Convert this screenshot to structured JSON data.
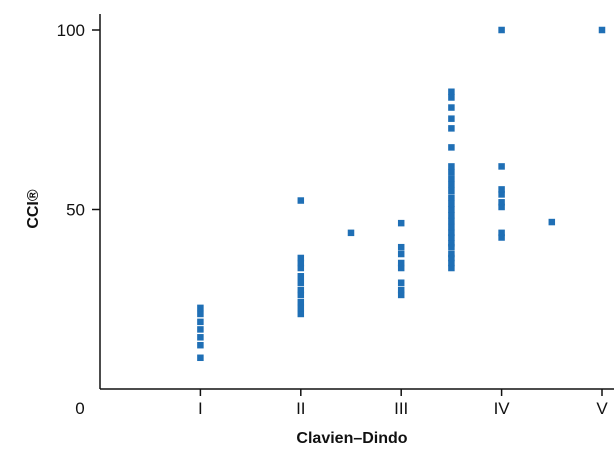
{
  "chart_data": {
    "type": "scatter",
    "title": "",
    "xlabel": "Clavien–Dindo",
    "ylabel": "CCI®",
    "x_categories": [
      "I",
      "II",
      "III",
      "IV",
      "V"
    ],
    "x_origin_label": "0",
    "xlim": [
      0,
      5
    ],
    "ylim": [
      0,
      100
    ],
    "y_ticks": [
      50,
      100
    ],
    "grid": false,
    "legend": "none",
    "marker_color": "#1f6fb5",
    "series": [
      {
        "points": [
          {
            "x": 1,
            "y": 8.7
          },
          {
            "x": 1,
            "y": 12.2
          },
          {
            "x": 1,
            "y": 14.4
          },
          {
            "x": 1,
            "y": 16.6
          },
          {
            "x": 1,
            "y": 18.7
          },
          {
            "x": 1,
            "y": 20.9
          },
          {
            "x": 1,
            "y": 22.6
          },
          {
            "x": 2,
            "y": 20.9
          },
          {
            "x": 2,
            "y": 22.6
          },
          {
            "x": 2,
            "y": 24.2
          },
          {
            "x": 2,
            "y": 26.2
          },
          {
            "x": 2,
            "y": 27.6
          },
          {
            "x": 2,
            "y": 29.6
          },
          {
            "x": 2,
            "y": 31.4
          },
          {
            "x": 2,
            "y": 33.7
          },
          {
            "x": 2,
            "y": 35.1
          },
          {
            "x": 2,
            "y": 36.5
          },
          {
            "x": 2,
            "y": 52.5
          },
          {
            "x": 2.5,
            "y": 43.5
          },
          {
            "x": 3,
            "y": 26.2
          },
          {
            "x": 3,
            "y": 27.6
          },
          {
            "x": 3,
            "y": 29.6
          },
          {
            "x": 3,
            "y": 33.7
          },
          {
            "x": 3,
            "y": 35.1
          },
          {
            "x": 3,
            "y": 37.6
          },
          {
            "x": 3,
            "y": 39.5
          },
          {
            "x": 3,
            "y": 46.2
          },
          {
            "x": 3.5,
            "y": 33.7
          },
          {
            "x": 3.5,
            "y": 35.1
          },
          {
            "x": 3.5,
            "y": 36.5
          },
          {
            "x": 3.5,
            "y": 37.6
          },
          {
            "x": 3.5,
            "y": 39.5
          },
          {
            "x": 3.5,
            "y": 40.6
          },
          {
            "x": 3.5,
            "y": 42.2
          },
          {
            "x": 3.5,
            "y": 43.5
          },
          {
            "x": 3.5,
            "y": 45.1
          },
          {
            "x": 3.5,
            "y": 46.8
          },
          {
            "x": 3.5,
            "y": 48.4
          },
          {
            "x": 3.5,
            "y": 50.0
          },
          {
            "x": 3.5,
            "y": 51.6
          },
          {
            "x": 3.5,
            "y": 53.3
          },
          {
            "x": 3.5,
            "y": 55.2
          },
          {
            "x": 3.5,
            "y": 56.9
          },
          {
            "x": 3.5,
            "y": 58.6
          },
          {
            "x": 3.5,
            "y": 60.4
          },
          {
            "x": 3.5,
            "y": 62.0
          },
          {
            "x": 3.5,
            "y": 67.3
          },
          {
            "x": 3.5,
            "y": 72.6
          },
          {
            "x": 3.5,
            "y": 75.3
          },
          {
            "x": 3.5,
            "y": 78.4
          },
          {
            "x": 3.5,
            "y": 81.2
          },
          {
            "x": 3.5,
            "y": 82.8
          },
          {
            "x": 4,
            "y": 42.2
          },
          {
            "x": 4,
            "y": 43.5
          },
          {
            "x": 4,
            "y": 50.7
          },
          {
            "x": 4,
            "y": 52.0
          },
          {
            "x": 4,
            "y": 54.2
          },
          {
            "x": 4,
            "y": 55.6
          },
          {
            "x": 4,
            "y": 62.0
          },
          {
            "x": 4,
            "y": 100
          },
          {
            "x": 4.5,
            "y": 46.5
          },
          {
            "x": 5,
            "y": 100
          }
        ]
      }
    ]
  }
}
